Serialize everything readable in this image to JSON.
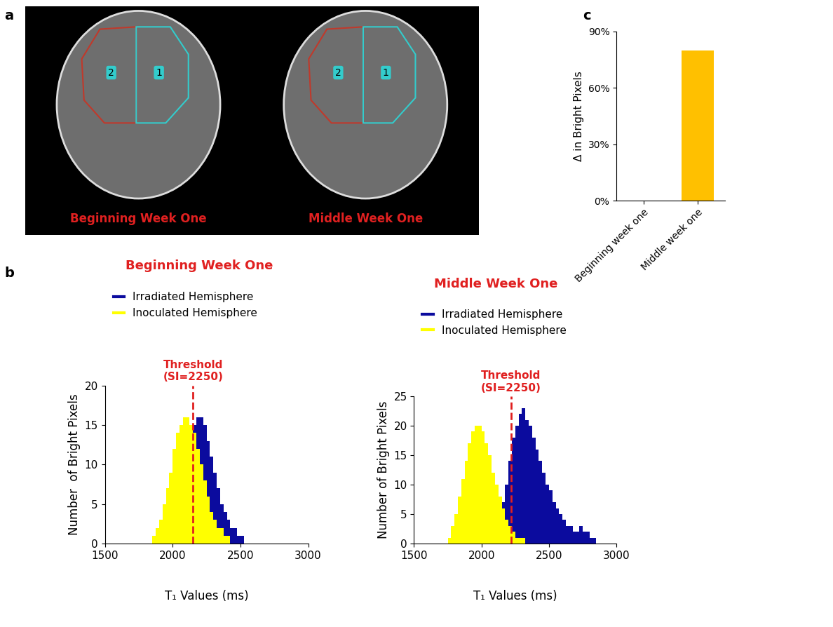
{
  "panel_labels": [
    "a",
    "b",
    "c"
  ],
  "images": [
    {
      "caption": "Beginning Week One",
      "regions": [
        "2",
        "1"
      ]
    },
    {
      "caption": "Middle Week One",
      "regions": [
        "2",
        "1"
      ]
    }
  ],
  "chart_data": [
    {
      "type": "histogram",
      "title": "Beginning Week One",
      "x_label": "T₁ Values (ms)",
      "y_label": "Number  of Bright Pixels",
      "bins": [
        1800,
        1825,
        1850,
        1875,
        1900,
        1925,
        1950,
        1975,
        2000,
        2025,
        2050,
        2075,
        2100,
        2125,
        2150,
        2175,
        2200,
        2225,
        2250,
        2275,
        2300,
        2325,
        2350,
        2375,
        2400,
        2425,
        2450,
        2475,
        2500,
        2525,
        2550,
        2575,
        2600
      ],
      "series": [
        {
          "name": "Irradiated Hemisphere",
          "color": "#0b0b9e",
          "values": [
            0,
            0,
            1,
            1,
            2,
            3,
            4,
            6,
            8,
            10,
            12,
            13,
            14,
            15,
            15,
            16,
            16,
            15,
            13,
            11,
            9,
            7,
            5,
            4,
            3,
            2,
            2,
            1,
            1,
            0,
            0,
            0
          ]
        },
        {
          "name": "Inoculated Hemisphere",
          "color": "#ffff00",
          "values": [
            0,
            0,
            1,
            2,
            3,
            5,
            7,
            9,
            12,
            14,
            15,
            16,
            16,
            15,
            14,
            12,
            10,
            8,
            6,
            4,
            3,
            2,
            2,
            1,
            1,
            0,
            0,
            0,
            0,
            0,
            0,
            0
          ]
        }
      ],
      "xlim": [
        1500,
        3000
      ],
      "xticks": [
        1500,
        2000,
        2500,
        3000
      ],
      "ylim": [
        0,
        20
      ],
      "yticks": [
        0,
        5,
        10,
        15,
        20
      ],
      "legend": "upper left",
      "threshold": {
        "x": 2150,
        "label": "Threshold\n(SI=2250)"
      }
    },
    {
      "type": "histogram",
      "title": "Middle Week One",
      "x_label": "T₁ Values (ms)",
      "y_label": "Number of Bright Pixels",
      "bins": [
        1700,
        1725,
        1750,
        1775,
        1800,
        1825,
        1850,
        1875,
        1900,
        1925,
        1950,
        1975,
        2000,
        2025,
        2050,
        2075,
        2100,
        2125,
        2150,
        2175,
        2200,
        2225,
        2250,
        2275,
        2300,
        2325,
        2350,
        2375,
        2400,
        2425,
        2450,
        2475,
        2500,
        2525,
        2550,
        2575,
        2600,
        2625,
        2650,
        2675,
        2700,
        2725,
        2750,
        2775,
        2800,
        2825,
        2850,
        2875,
        2900
      ],
      "series": [
        {
          "name": "Irradiated Hemisphere",
          "color": "#0b0b9e",
          "values": [
            0,
            0,
            0,
            0,
            0,
            0,
            0,
            0,
            0,
            0,
            0,
            0,
            0,
            0,
            1,
            2,
            3,
            5,
            7,
            10,
            14,
            18,
            20,
            22,
            23,
            21,
            20,
            18,
            16,
            14,
            12,
            10,
            9,
            7,
            6,
            5,
            4,
            3,
            3,
            2,
            2,
            3,
            2,
            2,
            1,
            1,
            0,
            0
          ]
        },
        {
          "name": "Inoculated Hemisphere",
          "color": "#ffff00",
          "values": [
            0,
            0,
            1,
            3,
            5,
            8,
            11,
            14,
            17,
            19,
            20,
            20,
            19,
            17,
            15,
            12,
            10,
            8,
            6,
            4,
            3,
            2,
            1,
            1,
            1,
            0,
            0,
            0,
            0,
            0,
            0,
            0,
            0,
            0,
            0,
            0,
            0,
            0,
            0,
            0,
            0,
            0,
            0,
            0,
            0,
            0,
            0,
            0
          ]
        }
      ],
      "xlim": [
        1500,
        3000
      ],
      "xticks": [
        1500,
        2000,
        2500,
        3000
      ],
      "ylim": [
        0,
        25
      ],
      "yticks": [
        0,
        5,
        10,
        15,
        20,
        25
      ],
      "legend": "upper left",
      "threshold": {
        "x": 2220,
        "label": "Threshold\n(SI=2250)"
      }
    },
    {
      "type": "bar",
      "y_label": "Δ in Bright Pixels",
      "categories": [
        "Beginning week one",
        "Middle week one"
      ],
      "values": [
        0,
        80
      ],
      "color": "#ffc000",
      "ylim": [
        0,
        90
      ],
      "yticks": [
        {
          "value": 0,
          "label": "0%"
        },
        {
          "value": 30,
          "label": "30%"
        },
        {
          "value": 60,
          "label": "60%"
        },
        {
          "value": 90,
          "label": "90%"
        }
      ]
    }
  ]
}
